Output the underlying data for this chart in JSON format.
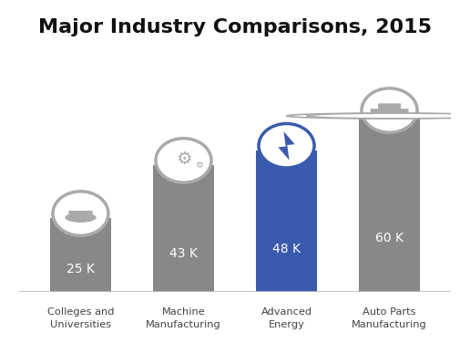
{
  "title": "Major Industry Comparisons, 2015",
  "categories": [
    "Colleges and\nUniversities",
    "Machine\nManufacturing",
    "Advanced\nEnergy",
    "Auto Parts\nManufacturing"
  ],
  "values": [
    25,
    43,
    48,
    60
  ],
  "labels": [
    "25 K",
    "43 K",
    "48 K",
    "60 K"
  ],
  "bar_colors": [
    "#888888",
    "#888888",
    "#3a5aad",
    "#888888"
  ],
  "highlight_index": 2,
  "background_color": "#ffffff",
  "title_fontsize": 16,
  "label_fontsize": 10,
  "bar_gray": "#888888",
  "bar_blue": "#3a5aad",
  "icon_ring_gray": "#aaaaaa",
  "icon_ring_blue": "#3a5aad",
  "icon_symbol_gray": "#aaaaaa",
  "icon_symbol_blue": "#3a5aad",
  "ylim_max": 85,
  "bar_width": 0.6
}
